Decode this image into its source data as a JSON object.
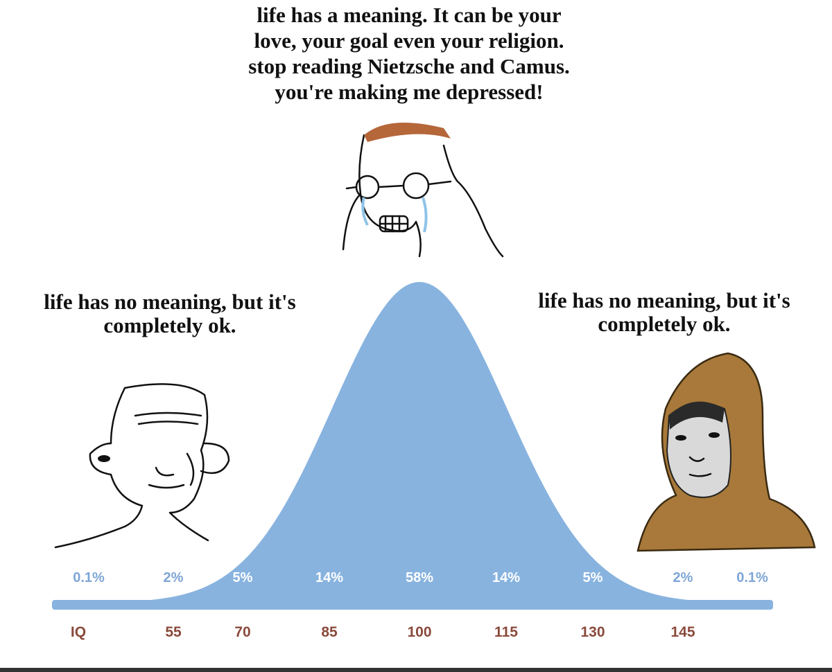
{
  "captions": {
    "top": [
      "life has a meaning. It can be your",
      "love, your goal even your religion.",
      "stop reading Nietzsche and Camus.",
      "you're making me depressed!"
    ],
    "left": [
      "life has no meaning, but it's",
      "completely ok."
    ],
    "right": [
      "life has no meaning, but it's",
      "completely ok."
    ]
  },
  "percent_labels": [
    "0.1%",
    "2%",
    "5%",
    "14%",
    "58%",
    "14%",
    "5%",
    "2%",
    "0.1%"
  ],
  "axis": {
    "label": "IQ",
    "ticks": [
      "55",
      "70",
      "85",
      "100",
      "115",
      "130",
      "145"
    ]
  }
}
